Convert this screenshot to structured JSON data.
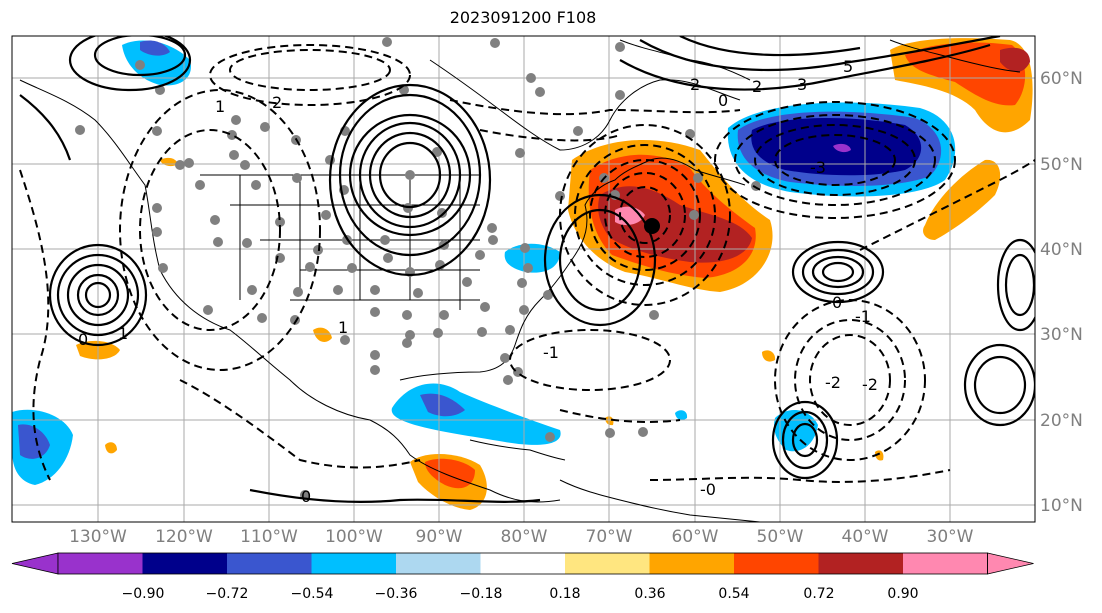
{
  "title": "2023091200 F108",
  "lon_labels": [
    "130°W",
    "120°W",
    "110°W",
    "100°W",
    "90°W",
    "80°W",
    "70°W",
    "60°W",
    "50°W",
    "40°W",
    "30°W"
  ],
  "lat_labels": [
    "60°N",
    "50°N",
    "40°N",
    "30°N",
    "20°N",
    "10°N"
  ],
  "contour_labels": {
    "c0a": "0",
    "c0b": "0",
    "c0c": "0",
    "c0d": "0",
    "c0e": "-0",
    "c1a": "1",
    "c1b": "1",
    "c1c": "-1",
    "c1d": "-1",
    "c1e": "1",
    "c2a": "2",
    "c2b": "2",
    "c2c": "-2",
    "c2d": "-2",
    "c2e": "2",
    "c3a": "3",
    "c3b": "-3",
    "c5a": "5"
  },
  "colorbar": {
    "ticks": [
      "−0.90",
      "−0.72",
      "−0.54",
      "−0.36",
      "−0.18",
      "0.18",
      "0.36",
      "0.54",
      "0.72",
      "0.90"
    ],
    "colors": [
      "#9932cc",
      "#00008b",
      "#3a56cf",
      "#00bfff",
      "#add8f0",
      "#ffffff",
      "#ffe680",
      "#ffa500",
      "#ff4500",
      "#b22222",
      "#ff88b0"
    ]
  }
}
